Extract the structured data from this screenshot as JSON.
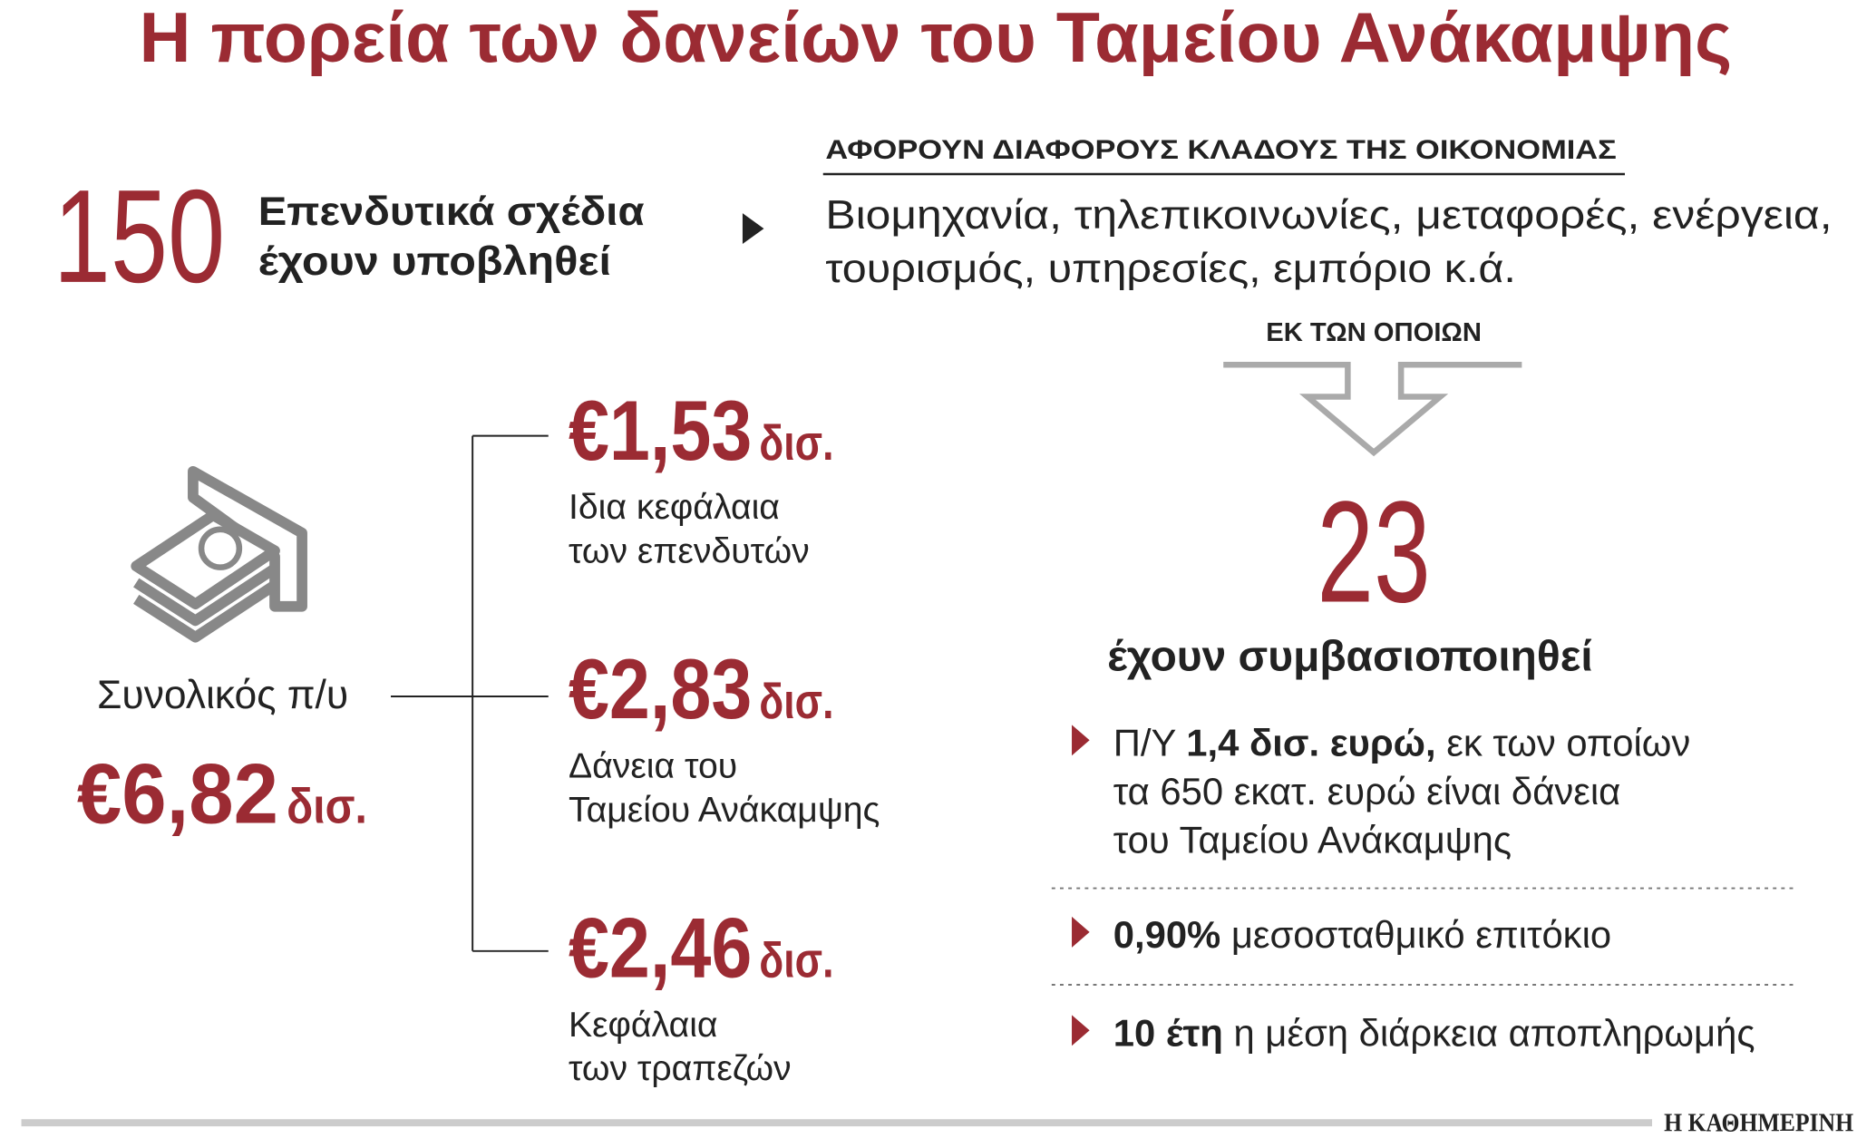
{
  "title": "Η πορεία των δανείων του Ταμείου Ανάκαμψης",
  "plans": {
    "count": 150,
    "lines": [
      "Επενδυτικά σχέδια",
      "έχουν υποβληθεί"
    ]
  },
  "sectors": {
    "heading": "ΑΦΟΡΟΥΝ ΔΙΑΦΟΡΟΥΣ ΚΛΑΔΟΥΣ ΤΗΣ ΟΙΚΟΝΟΜΙΑΣ",
    "lines": [
      "Βιομηχανία, τηλεπικοινωνίες, μεταφορές, ενέργεια,",
      "τουρισμός, υπηρεσίες, εμπόριο κ.ά."
    ]
  },
  "total": {
    "label": "Συνολικός π/υ",
    "amount": "€6,82",
    "unit": "δισ."
  },
  "breakdown": [
    {
      "amount": "€1,53",
      "unit": "δισ.",
      "lines": [
        "Ιδια κεφάλαια",
        "των επενδυτών"
      ]
    },
    {
      "amount": "€2,83",
      "unit": "δισ.",
      "lines": [
        "Δάνεια του",
        "Ταμείου Ανάκαμψης"
      ]
    },
    {
      "amount": "€2,46",
      "unit": "δισ.",
      "lines": [
        "Κεφάλαια",
        "των τραπεζών"
      ]
    }
  ],
  "subset": {
    "label": "ΕΚ ΤΩΝ ΟΠΟΙΩΝ",
    "count": 23,
    "caption": "έχουν συμβασιοποιηθεί"
  },
  "details": [
    {
      "lines": [
        [
          {
            "text": "Π/Υ ",
            "bold": false
          },
          {
            "text": "1,4 δισ. ευρώ,",
            "bold": true
          },
          {
            "text": " εκ των οποίων",
            "bold": false
          }
        ],
        [
          {
            "text": "τα 650 εκατ. ευρώ είναι δάνεια",
            "bold": false
          }
        ],
        [
          {
            "text": "του Ταμείου Ανάκαμψης",
            "bold": false
          }
        ]
      ]
    },
    {
      "lines": [
        [
          {
            "text": "0,90%",
            "bold": true
          },
          {
            "text": " μεσοσταθμικό επιτόκιο",
            "bold": false
          }
        ]
      ]
    },
    {
      "lines": [
        [
          {
            "text": "10 έτη",
            "bold": true
          },
          {
            "text": " η μέση διάρκεια αποπληρωμής",
            "bold": false
          }
        ]
      ]
    }
  ],
  "source": "Η ΚΑΘΗΜΕΡΙΝΗ"
}
